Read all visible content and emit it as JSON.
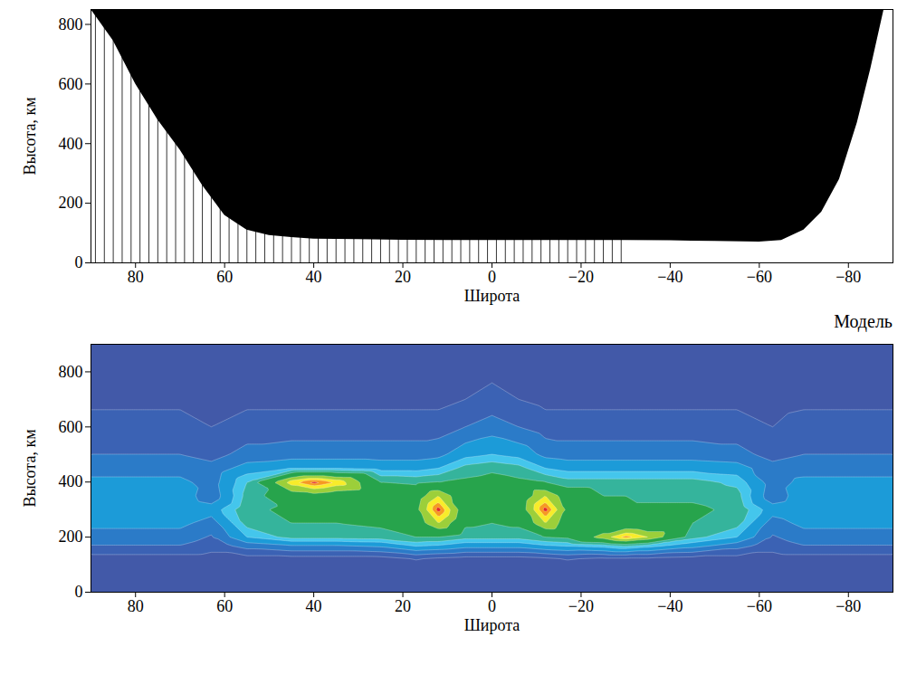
{
  "chart_data": [
    {
      "type": "area",
      "x_label": "Широта",
      "y_label": "Высота, км",
      "color": "#000000",
      "x": [
        90,
        85,
        80,
        75,
        70,
        65,
        60,
        55,
        50,
        45,
        40,
        30,
        20,
        10,
        0,
        -10,
        -20,
        -30,
        -40,
        -50,
        -60,
        -65,
        -70,
        -74,
        -78,
        -82,
        -85,
        -88,
        -90
      ],
      "lower": [
        850,
        745,
        600,
        480,
        379,
        260,
        159,
        110,
        92,
        85,
        80,
        78,
        76,
        75,
        75,
        75,
        75,
        75,
        74,
        72,
        70,
        75,
        110,
        170,
        280,
        470,
        650,
        850,
        850
      ],
      "vlines": [
        89,
        87,
        85,
        83,
        81,
        79,
        77,
        75,
        73,
        71,
        69,
        67,
        65,
        63,
        61,
        59,
        57,
        55,
        53,
        51,
        49,
        47,
        45,
        43,
        41,
        39,
        37,
        35,
        33,
        31,
        29,
        27,
        25,
        23,
        21,
        19,
        17,
        15,
        13,
        11,
        9,
        7,
        5,
        3,
        1,
        -1,
        -3,
        -5,
        -7,
        -9,
        -11,
        -13,
        -15,
        -17,
        -19,
        -21,
        -23,
        -25,
        -27,
        -29
      ],
      "xlim": [
        90,
        -90
      ],
      "xticks": [
        80,
        60,
        40,
        20,
        0,
        -20,
        -40,
        -60,
        -80
      ],
      "ylim": [
        0,
        850
      ],
      "yticks": [
        0,
        200,
        400,
        600,
        800
      ]
    },
    {
      "type": "contour",
      "title": "Модель",
      "x_label": "Широта",
      "y_label": "Высота, км",
      "x": [
        90,
        80,
        70,
        63,
        55,
        45,
        40,
        35,
        25,
        17,
        12,
        6,
        0,
        -6,
        -12,
        -17,
        -25,
        -30,
        -35,
        -45,
        -55,
        -63,
        -70,
        -80,
        -90
      ],
      "y": [
        0,
        120,
        170,
        200,
        250,
        300,
        350,
        400,
        450,
        500,
        600,
        700,
        900
      ],
      "z": [
        [
          0.05,
          0.05,
          0.05,
          0.05,
          0.05,
          0.05,
          0.05,
          0.05,
          0.05,
          0.05,
          0.05,
          0.05,
          0.05,
          0.05,
          0.05,
          0.05,
          0.05,
          0.05,
          0.05,
          0.05,
          0.05,
          0.05,
          0.05,
          0.05,
          0.05
        ],
        [
          0.1,
          0.1,
          0.1,
          0.1,
          0.1,
          0.1,
          0.1,
          0.1,
          0.1,
          0.15,
          0.12,
          0.1,
          0.1,
          0.1,
          0.12,
          0.15,
          0.12,
          0.12,
          0.12,
          0.1,
          0.1,
          0.1,
          0.1,
          0.1,
          0.1
        ],
        [
          0.25,
          0.25,
          0.25,
          0.2,
          0.3,
          0.35,
          0.35,
          0.35,
          0.38,
          0.47,
          0.45,
          0.4,
          0.4,
          0.4,
          0.45,
          0.47,
          0.5,
          0.55,
          0.5,
          0.4,
          0.3,
          0.2,
          0.25,
          0.25,
          0.25
        ],
        [
          0.3,
          0.3,
          0.3,
          0.24,
          0.45,
          0.55,
          0.55,
          0.55,
          0.56,
          0.6,
          0.6,
          0.55,
          0.55,
          0.55,
          0.6,
          0.62,
          0.8,
          0.95,
          0.85,
          0.55,
          0.45,
          0.24,
          0.3,
          0.3,
          0.3
        ],
        [
          0.38,
          0.38,
          0.38,
          0.3,
          0.55,
          0.6,
          0.6,
          0.6,
          0.62,
          0.68,
          0.85,
          0.62,
          0.6,
          0.62,
          0.85,
          0.68,
          0.62,
          0.62,
          0.6,
          0.6,
          0.55,
          0.3,
          0.38,
          0.38,
          0.38
        ],
        [
          0.45,
          0.45,
          0.45,
          0.4,
          0.58,
          0.62,
          0.62,
          0.62,
          0.63,
          0.72,
          1,
          0.66,
          0.64,
          0.66,
          1,
          0.72,
          0.63,
          0.62,
          0.62,
          0.62,
          0.58,
          0.4,
          0.45,
          0.45,
          0.45
        ],
        [
          0.42,
          0.42,
          0.42,
          0.28,
          0.55,
          0.68,
          0.7,
          0.66,
          0.62,
          0.68,
          0.85,
          0.64,
          0.65,
          0.64,
          0.85,
          0.68,
          0.6,
          0.6,
          0.58,
          0.58,
          0.55,
          0.28,
          0.42,
          0.42,
          0.42
        ],
        [
          0.38,
          0.38,
          0.38,
          0.3,
          0.52,
          0.9,
          1,
          0.92,
          0.6,
          0.58,
          0.6,
          0.62,
          0.64,
          0.62,
          0.6,
          0.55,
          0.55,
          0.55,
          0.55,
          0.55,
          0.5,
          0.3,
          0.38,
          0.38,
          0.38
        ],
        [
          0.3,
          0.3,
          0.3,
          0.28,
          0.4,
          0.45,
          0.45,
          0.45,
          0.42,
          0.42,
          0.45,
          0.55,
          0.58,
          0.55,
          0.45,
          0.42,
          0.42,
          0.42,
          0.42,
          0.42,
          0.4,
          0.28,
          0.3,
          0.3,
          0.3
        ],
        [
          0.25,
          0.25,
          0.25,
          0.22,
          0.28,
          0.3,
          0.3,
          0.3,
          0.3,
          0.3,
          0.32,
          0.42,
          0.45,
          0.42,
          0.32,
          0.3,
          0.3,
          0.3,
          0.3,
          0.3,
          0.28,
          0.22,
          0.25,
          0.25,
          0.25
        ],
        [
          0.2,
          0.2,
          0.2,
          0.15,
          0.2,
          0.2,
          0.2,
          0.2,
          0.2,
          0.2,
          0.2,
          0.25,
          0.3,
          0.25,
          0.2,
          0.2,
          0.2,
          0.2,
          0.2,
          0.2,
          0.2,
          0.15,
          0.2,
          0.2,
          0.2
        ],
        [
          0.12,
          0.12,
          0.12,
          0.1,
          0.12,
          0.12,
          0.12,
          0.12,
          0.12,
          0.12,
          0.12,
          0.15,
          0.18,
          0.15,
          0.12,
          0.12,
          0.12,
          0.12,
          0.12,
          0.12,
          0.12,
          0.1,
          0.12,
          0.12,
          0.12
        ],
        [
          0.08,
          0.08,
          0.08,
          0.08,
          0.08,
          0.08,
          0.08,
          0.08,
          0.08,
          0.08,
          0.08,
          0.08,
          0.08,
          0.08,
          0.08,
          0.08,
          0.08,
          0.08,
          0.08,
          0.08,
          0.08,
          0.08,
          0.08,
          0.08,
          0.08
        ]
      ],
      "levels": [
        0,
        0.15,
        0.25,
        0.35,
        0.45,
        0.52,
        0.6,
        0.75,
        0.85,
        0.92,
        0.97
      ],
      "colors": [
        "#4259a8",
        "#3b62b4",
        "#2b7bc8",
        "#1c9bd8",
        "#44c6ec",
        "#35b49c",
        "#27a44c",
        "#9ccf3a",
        "#f8ec2a",
        "#f59a22",
        "#e3272a"
      ],
      "xlim": [
        90,
        -90
      ],
      "xticks": [
        80,
        60,
        40,
        20,
        0,
        -20,
        -40,
        -60,
        -80
      ],
      "ylim": [
        0,
        900
      ],
      "yticks": [
        0,
        200,
        400,
        600,
        800
      ]
    }
  ]
}
